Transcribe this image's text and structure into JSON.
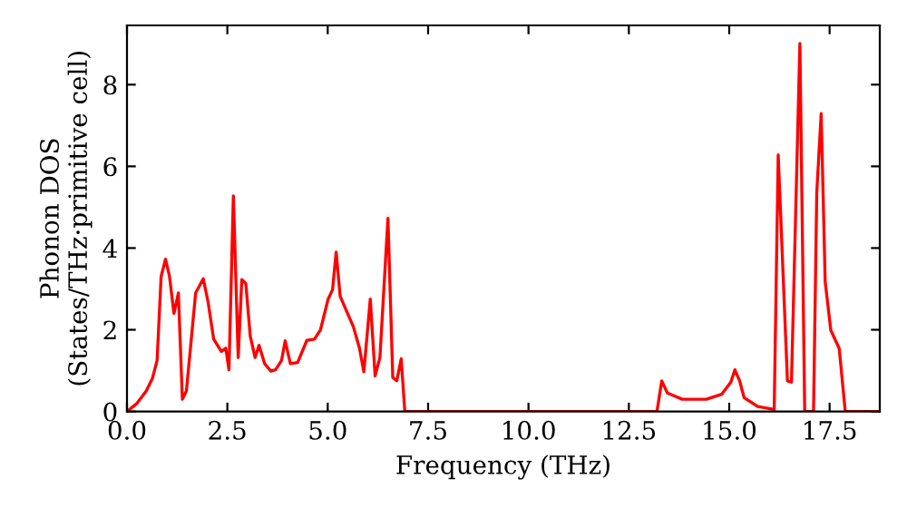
{
  "chart_data": {
    "type": "line",
    "xlabel": "Frequency (THz)",
    "ylabel": "Phonon DOS\n(States/THz·primitive cell)",
    "xlim": [
      0,
      18.75
    ],
    "ylim": [
      0,
      9.45
    ],
    "xticks": [
      {
        "value": 0,
        "label": "0.0"
      },
      {
        "value": 2.5,
        "label": "2.5"
      },
      {
        "value": 5,
        "label": "5.0"
      },
      {
        "value": 7.5,
        "label": "7.5"
      },
      {
        "value": 10,
        "label": "10.0"
      },
      {
        "value": 12.5,
        "label": "12.5"
      },
      {
        "value": 15,
        "label": "15.0"
      },
      {
        "value": 17.5,
        "label": "17.5"
      }
    ],
    "yticks": [
      0,
      2,
      4,
      6,
      8
    ],
    "grid": false,
    "legend": false,
    "marker": "none",
    "line_style": "solid",
    "series": [
      {
        "color": "#ff0000",
        "x": [
          0,
          0.25,
          0.48,
          0.63,
          0.75,
          0.85,
          0.96,
          1.06,
          1.17,
          1.28,
          1.38,
          1.48,
          1.71,
          1.9,
          2.02,
          2.16,
          2.35,
          2.46,
          2.54,
          2.65,
          2.77,
          2.86,
          2.96,
          3.07,
          3.19,
          3.29,
          3.43,
          3.58,
          3.7,
          3.85,
          3.94,
          4.07,
          4.25,
          4.48,
          4.67,
          4.82,
          5.01,
          5.12,
          5.21,
          5.31,
          5.64,
          5.79,
          5.9,
          6.06,
          6.18,
          6.3,
          6.5,
          6.62,
          6.72,
          6.83,
          6.92,
          13.2,
          13.32,
          13.46,
          13.83,
          14.43,
          14.81,
          15.04,
          15.14,
          15.26,
          15.37,
          15.71,
          16.12,
          16.22,
          16.45,
          16.55,
          16.76,
          16.88,
          17.1,
          17.18,
          17.29,
          17.39,
          17.53,
          17.74,
          17.89,
          18.75
        ],
        "values": [
          0,
          0.2,
          0.5,
          0.8,
          1.25,
          3.3,
          3.73,
          3.3,
          2.4,
          2.9,
          0.3,
          0.5,
          2.9,
          3.25,
          2.68,
          1.77,
          1.47,
          1.55,
          1.02,
          5.28,
          1.32,
          3.23,
          3.13,
          1.85,
          1.32,
          1.62,
          1.17,
          0.99,
          1.02,
          1.25,
          1.73,
          1.17,
          1.2,
          1.74,
          1.77,
          2.0,
          2.75,
          2.98,
          3.9,
          2.82,
          2.07,
          1.55,
          0.97,
          2.75,
          0.87,
          1.32,
          4.73,
          0.83,
          0.75,
          1.29,
          0,
          0,
          0.75,
          0.45,
          0.3,
          0.3,
          0.42,
          0.72,
          1.02,
          0.75,
          0.34,
          0.12,
          0.05,
          6.28,
          0.75,
          0.72,
          9.01,
          0,
          0,
          5.35,
          7.29,
          3.18,
          1.99,
          1.54,
          0,
          0
        ]
      }
    ]
  }
}
